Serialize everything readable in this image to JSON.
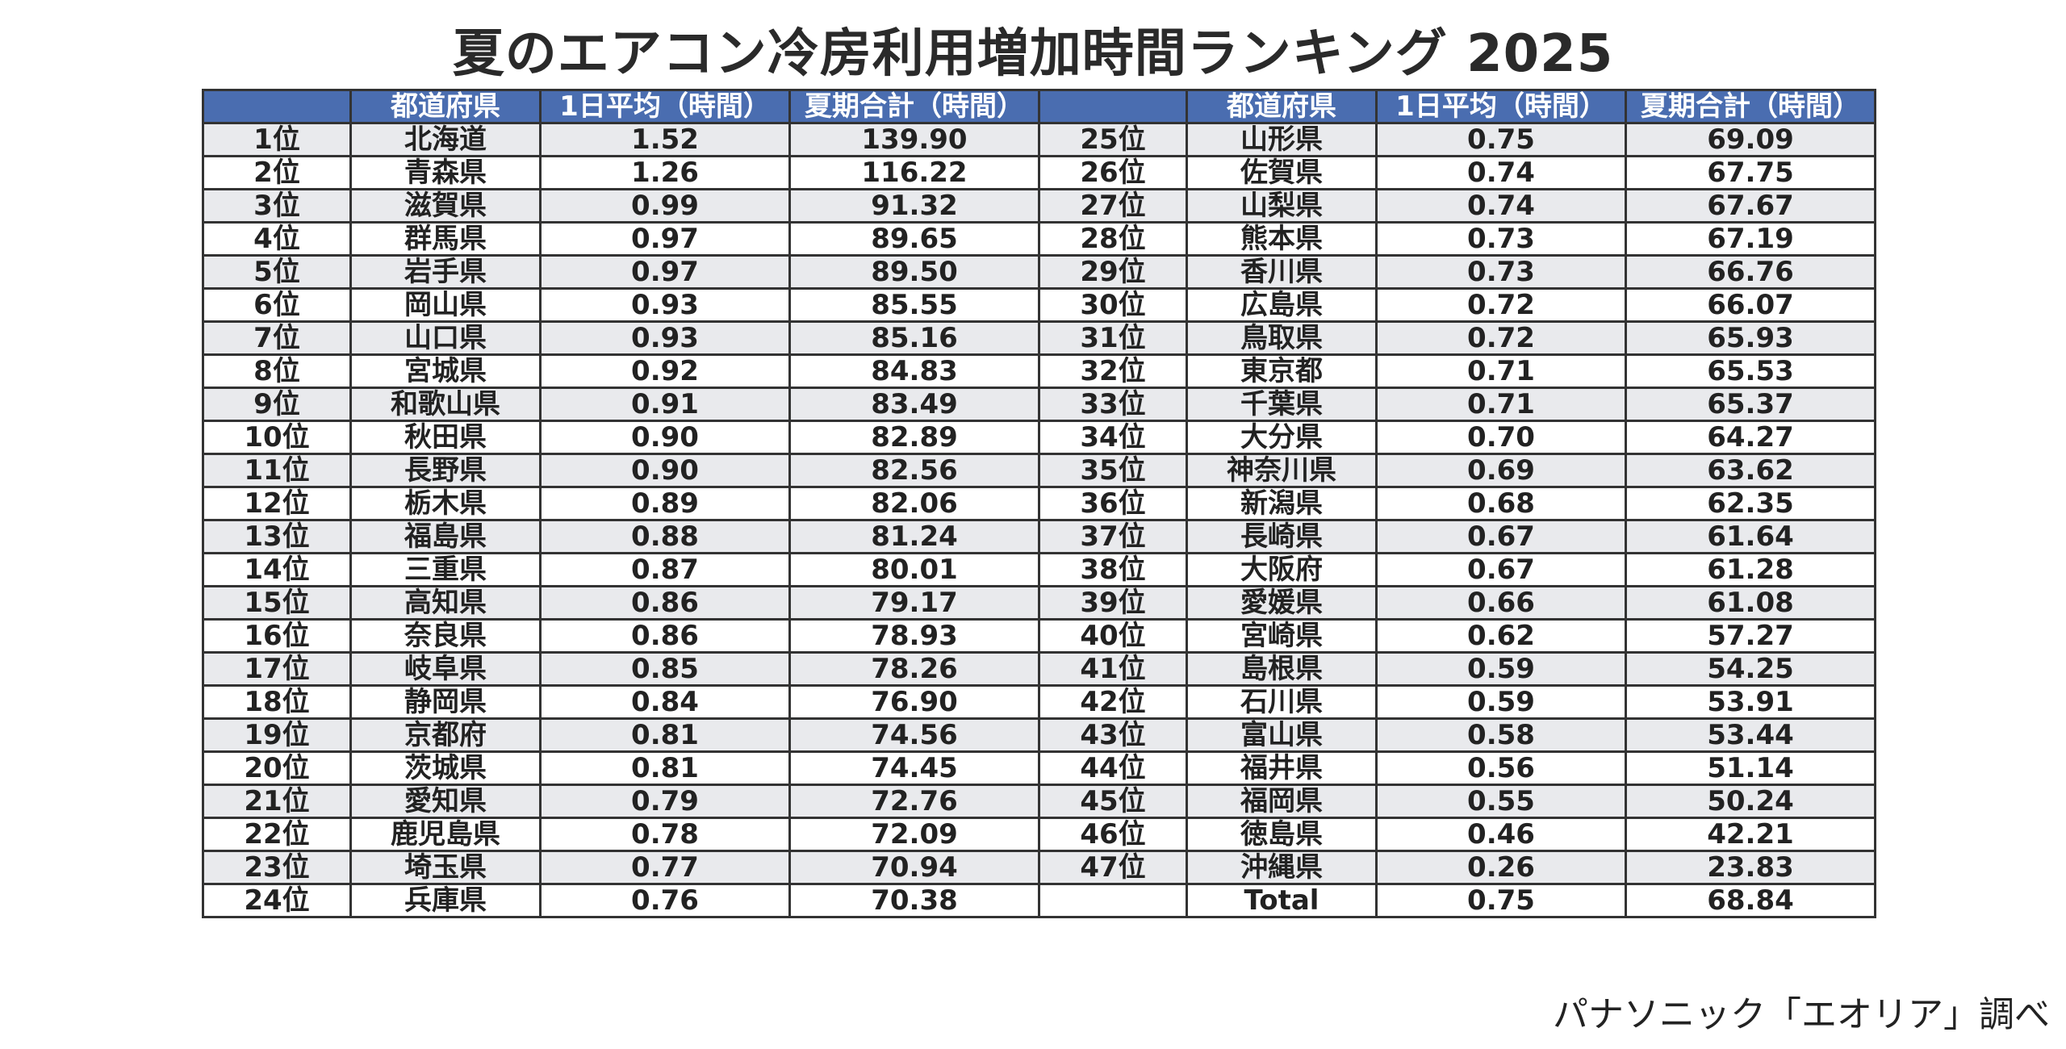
{
  "title": "夏のエアコン冷房利用増加時間ランキング 2025",
  "table": {
    "headers": [
      "",
      "都道府県",
      "1日平均（時間）",
      "夏期合計（時間）",
      "",
      "都道府県",
      "1日平均（時間）",
      "夏期合計（時間）"
    ],
    "rows": [
      [
        "1位",
        "北海道",
        "1.52",
        "139.90",
        "25位",
        "山形県",
        "0.75",
        "69.09"
      ],
      [
        "2位",
        "青森県",
        "1.26",
        "116.22",
        "26位",
        "佐賀県",
        "0.74",
        "67.75"
      ],
      [
        "3位",
        "滋賀県",
        "0.99",
        "91.32",
        "27位",
        "山梨県",
        "0.74",
        "67.67"
      ],
      [
        "4位",
        "群馬県",
        "0.97",
        "89.65",
        "28位",
        "熊本県",
        "0.73",
        "67.19"
      ],
      [
        "5位",
        "岩手県",
        "0.97",
        "89.50",
        "29位",
        "香川県",
        "0.73",
        "66.76"
      ],
      [
        "6位",
        "岡山県",
        "0.93",
        "85.55",
        "30位",
        "広島県",
        "0.72",
        "66.07"
      ],
      [
        "7位",
        "山口県",
        "0.93",
        "85.16",
        "31位",
        "鳥取県",
        "0.72",
        "65.93"
      ],
      [
        "8位",
        "宮城県",
        "0.92",
        "84.83",
        "32位",
        "東京都",
        "0.71",
        "65.53"
      ],
      [
        "9位",
        "和歌山県",
        "0.91",
        "83.49",
        "33位",
        "千葉県",
        "0.71",
        "65.37"
      ],
      [
        "10位",
        "秋田県",
        "0.90",
        "82.89",
        "34位",
        "大分県",
        "0.70",
        "64.27"
      ],
      [
        "11位",
        "長野県",
        "0.90",
        "82.56",
        "35位",
        "神奈川県",
        "0.69",
        "63.62"
      ],
      [
        "12位",
        "栃木県",
        "0.89",
        "82.06",
        "36位",
        "新潟県",
        "0.68",
        "62.35"
      ],
      [
        "13位",
        "福島県",
        "0.88",
        "81.24",
        "37位",
        "長崎県",
        "0.67",
        "61.64"
      ],
      [
        "14位",
        "三重県",
        "0.87",
        "80.01",
        "38位",
        "大阪府",
        "0.67",
        "61.28"
      ],
      [
        "15位",
        "高知県",
        "0.86",
        "79.17",
        "39位",
        "愛媛県",
        "0.66",
        "61.08"
      ],
      [
        "16位",
        "奈良県",
        "0.86",
        "78.93",
        "40位",
        "宮崎県",
        "0.62",
        "57.27"
      ],
      [
        "17位",
        "岐阜県",
        "0.85",
        "78.26",
        "41位",
        "島根県",
        "0.59",
        "54.25"
      ],
      [
        "18位",
        "静岡県",
        "0.84",
        "76.90",
        "42位",
        "石川県",
        "0.59",
        "53.91"
      ],
      [
        "19位",
        "京都府",
        "0.81",
        "74.56",
        "43位",
        "富山県",
        "0.58",
        "53.44"
      ],
      [
        "20位",
        "茨城県",
        "0.81",
        "74.45",
        "44位",
        "福井県",
        "0.56",
        "51.14"
      ],
      [
        "21位",
        "愛知県",
        "0.79",
        "72.76",
        "45位",
        "福岡県",
        "0.55",
        "50.24"
      ],
      [
        "22位",
        "鹿児島県",
        "0.78",
        "72.09",
        "46位",
        "徳島県",
        "0.46",
        "42.21"
      ],
      [
        "23位",
        "埼玉県",
        "0.77",
        "70.94",
        "47位",
        "沖縄県",
        "0.26",
        "23.83"
      ],
      [
        "24位",
        "兵庫県",
        "0.76",
        "70.38",
        "",
        "Total",
        "0.75",
        "68.84"
      ]
    ]
  },
  "source": "パナソニック「エオリア」調べ",
  "colors": {
    "header_bg": "#4a6db0",
    "header_text": "#ffffff",
    "row_stripe": "#e9eaed",
    "border": "#333333"
  }
}
